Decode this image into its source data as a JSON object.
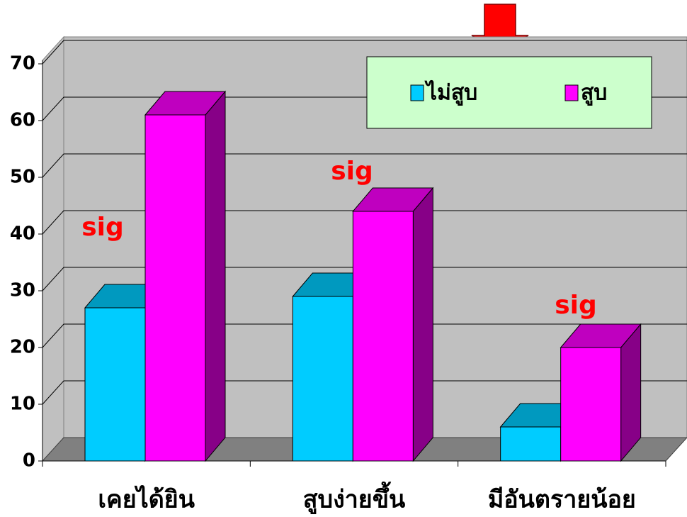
{
  "chart_data": {
    "type": "bar3d",
    "categories": [
      "เคยได้ยิน",
      "สูบง่ายขึ้น",
      "มีอันตรายน้อย"
    ],
    "series": [
      {
        "name": "ไม่สูบ",
        "color": "#00ccff",
        "values": [
          27,
          29,
          6
        ]
      },
      {
        "name": "สูบ",
        "color": "#ff00ff",
        "values": [
          61,
          44,
          20
        ]
      }
    ],
    "ylim": [
      0,
      70
    ],
    "yticks": [
      0,
      10,
      20,
      30,
      40,
      50,
      60,
      70
    ],
    "grid": true,
    "annotations": [
      "sig",
      "sig",
      "sig"
    ]
  }
}
